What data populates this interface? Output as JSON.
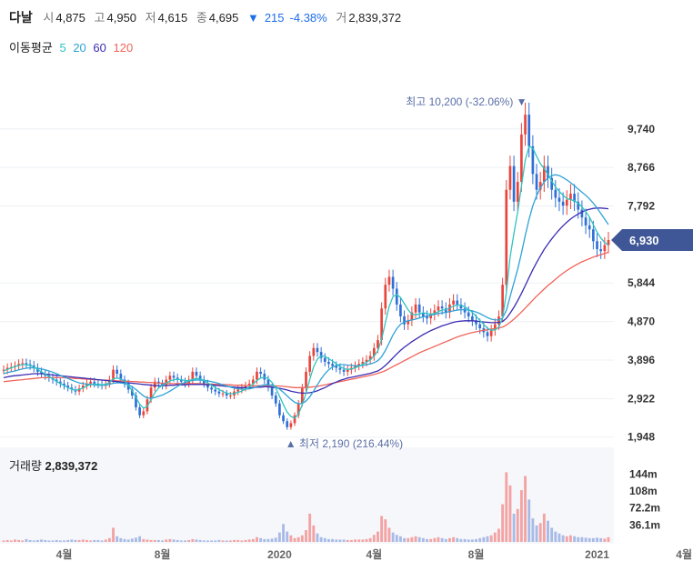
{
  "header": {
    "stock_name": "다날",
    "open_label": "시",
    "open": "4,875",
    "high_label": "고",
    "high": "4,950",
    "low_label": "저",
    "low": "4,615",
    "close_label": "종",
    "close": "4,695",
    "change_arrow": "▼",
    "change": "215",
    "change_pct": "-4.38%",
    "volume_label": "거",
    "volume": "2,839,372"
  },
  "moving_average": {
    "label": "이동평균",
    "periods": [
      {
        "label": "5",
        "color": "#2ec4c0"
      },
      {
        "label": "20",
        "color": "#2ea2d6"
      },
      {
        "label": "60",
        "color": "#3b2db3"
      },
      {
        "label": "120",
        "color": "#f0645a"
      }
    ]
  },
  "chart_data": {
    "type": "candlestick",
    "y_ticks": [
      "9,740",
      "8,766",
      "7,792",
      "6,930",
      "5,844",
      "4,870",
      "3,896",
      "2,922",
      "1,948"
    ],
    "y_tick_values": [
      9740,
      8766,
      7792,
      6930,
      5844,
      4870,
      3896,
      2922,
      1948
    ],
    "ylim": [
      1850,
      10700
    ],
    "current_price": "6,930",
    "current_value": 6930,
    "max_annotation": {
      "prefix": "최고",
      "value": "10,200",
      "pct": "(-32.06%)",
      "arrow": "▼",
      "price": 10200
    },
    "min_annotation": {
      "prefix": "최저",
      "value": "2,190",
      "pct": "(216.44%)",
      "arrow": "▲",
      "price": 2190
    },
    "x_labels": [
      "4월",
      "8월",
      "2020",
      "4월",
      "8월",
      "2021",
      "4월"
    ],
    "x_label_index": [
      16,
      42,
      73,
      98,
      125,
      157,
      180
    ],
    "price_series": [
      3650,
      3700,
      3720,
      3750,
      3800,
      3820,
      3790,
      3760,
      3700,
      3600,
      3550,
      3500,
      3450,
      3400,
      3350,
      3300,
      3250,
      3200,
      3150,
      3100,
      3180,
      3250,
      3300,
      3350,
      3300,
      3280,
      3250,
      3300,
      3400,
      3650,
      3550,
      3400,
      3300,
      3150,
      3000,
      2700,
      2500,
      2600,
      2900,
      3200,
      3350,
      3300,
      3250,
      3400,
      3500,
      3450,
      3400,
      3350,
      3300,
      3400,
      3600,
      3500,
      3400,
      3300,
      3200,
      3150,
      3100,
      3050,
      3050,
      3000,
      3000,
      3100,
      3150,
      3200,
      3250,
      3300,
      3400,
      3600,
      3550,
      3400,
      3200,
      3000,
      2800,
      2500,
      2350,
      2200,
      2300,
      2500,
      2800,
      3200,
      3600,
      4000,
      4200,
      4100,
      3950,
      3850,
      3800,
      3750,
      3700,
      3650,
      3600,
      3650,
      3700,
      3750,
      3800,
      3850,
      3900,
      4000,
      4200,
      4400,
      5200,
      5800,
      6000,
      5700,
      5300,
      5000,
      4800,
      4900,
      5100,
      5300,
      5100,
      5000,
      4950,
      5050,
      5150,
      5250,
      5200,
      5100,
      5300,
      5400,
      5300,
      5200,
      5100,
      5000,
      4900,
      4800,
      4700,
      4600,
      4500,
      4650,
      4800,
      5000,
      5800,
      8200,
      8800,
      7900,
      8400,
      9600,
      10100,
      9300,
      8600,
      8200,
      8400,
      8800,
      8500,
      8200,
      8000,
      7900,
      7800,
      7950,
      8100,
      7900,
      7700,
      7500,
      7300,
      7200,
      6900,
      6700,
      6650,
      6800,
      6930
    ],
    "ma5_series": [
      3620,
      3660,
      3700,
      3730,
      3760,
      3780,
      3780,
      3760,
      3720,
      3660,
      3600,
      3540,
      3480,
      3420,
      3360,
      3300,
      3250,
      3200,
      3160,
      3130,
      3150,
      3190,
      3240,
      3280,
      3290,
      3280,
      3270,
      3280,
      3330,
      3420,
      3440,
      3420,
      3360,
      3260,
      3120,
      2950,
      2780,
      2680,
      2720,
      2900,
      3070,
      3190,
      3260,
      3310,
      3370,
      3400,
      3410,
      3400,
      3380,
      3370,
      3410,
      3430,
      3420,
      3380,
      3320,
      3260,
      3200,
      3150,
      3100,
      3060,
      3040,
      3050,
      3080,
      3110,
      3160,
      3220,
      3290,
      3380,
      3440,
      3460,
      3430,
      3330,
      3180,
      2980,
      2770,
      2580,
      2470,
      2430,
      2530,
      2760,
      3060,
      3410,
      3720,
      3920,
      4000,
      3990,
      3930,
      3870,
      3800,
      3730,
      3680,
      3660,
      3670,
      3700,
      3740,
      3790,
      3840,
      3900,
      4000,
      4130,
      4420,
      4850,
      5250,
      5500,
      5550,
      5480,
      5320,
      5170,
      5050,
      5040,
      5060,
      5090,
      5070,
      5060,
      5070,
      5120,
      5160,
      5170,
      5210,
      5260,
      5290,
      5280,
      5240,
      5180,
      5100,
      5000,
      4900,
      4800,
      4700,
      4650,
      4660,
      4730,
      4960,
      5600,
      6500,
      7100,
      7650,
      8300,
      8950,
      9300,
      9250,
      9050,
      8860,
      8740,
      8590,
      8420,
      8270,
      8160,
      8060,
      7980,
      7950,
      7920,
      7860,
      7770,
      7650,
      7510,
      7320,
      7130,
      6980,
      6870,
      6800
    ],
    "ma20_series": [
      3550,
      3580,
      3600,
      3620,
      3650,
      3670,
      3690,
      3700,
      3700,
      3690,
      3670,
      3650,
      3620,
      3590,
      3550,
      3510,
      3470,
      3430,
      3390,
      3350,
      3320,
      3300,
      3290,
      3280,
      3270,
      3260,
      3260,
      3260,
      3280,
      3310,
      3320,
      3320,
      3300,
      3270,
      3220,
      3150,
      3070,
      2990,
      2940,
      2930,
      2950,
      2980,
      3010,
      3060,
      3110,
      3170,
      3230,
      3290,
      3330,
      3360,
      3380,
      3390,
      3390,
      3380,
      3370,
      3350,
      3330,
      3300,
      3270,
      3240,
      3210,
      3190,
      3170,
      3160,
      3160,
      3170,
      3190,
      3220,
      3250,
      3270,
      3270,
      3260,
      3220,
      3160,
      3080,
      2990,
      2900,
      2830,
      2790,
      2800,
      2860,
      2970,
      3110,
      3270,
      3420,
      3550,
      3650,
      3720,
      3760,
      3780,
      3780,
      3770,
      3760,
      3750,
      3750,
      3760,
      3780,
      3800,
      3830,
      3880,
      3980,
      4140,
      4330,
      4530,
      4690,
      4800,
      4860,
      4890,
      4910,
      4930,
      4960,
      4990,
      5010,
      5030,
      5050,
      5070,
      5090,
      5100,
      5120,
      5140,
      5160,
      5170,
      5170,
      5160,
      5140,
      5110,
      5070,
      5020,
      4970,
      4930,
      4910,
      4910,
      4960,
      5150,
      5500,
      5850,
      6200,
      6600,
      7050,
      7450,
      7800,
      8050,
      8250,
      8400,
      8500,
      8560,
      8580,
      8560,
      8510,
      8450,
      8380,
      8300,
      8220,
      8140,
      8060,
      7970,
      7860,
      7740,
      7600,
      7460,
      7320
    ],
    "ma60_series": [
      3450,
      3470,
      3490,
      3500,
      3510,
      3520,
      3530,
      3540,
      3550,
      3550,
      3550,
      3540,
      3530,
      3520,
      3510,
      3500,
      3490,
      3480,
      3470,
      3460,
      3450,
      3440,
      3430,
      3420,
      3410,
      3400,
      3390,
      3380,
      3370,
      3360,
      3350,
      3340,
      3330,
      3320,
      3310,
      3300,
      3290,
      3280,
      3270,
      3260,
      3250,
      3250,
      3250,
      3250,
      3260,
      3260,
      3270,
      3270,
      3270,
      3280,
      3280,
      3280,
      3280,
      3280,
      3270,
      3270,
      3260,
      3250,
      3240,
      3230,
      3220,
      3210,
      3200,
      3200,
      3200,
      3200,
      3200,
      3210,
      3210,
      3220,
      3220,
      3210,
      3200,
      3180,
      3160,
      3140,
      3110,
      3090,
      3070,
      3060,
      3060,
      3070,
      3090,
      3120,
      3160,
      3200,
      3250,
      3300,
      3340,
      3380,
      3410,
      3440,
      3460,
      3480,
      3500,
      3520,
      3540,
      3560,
      3590,
      3620,
      3680,
      3760,
      3850,
      3950,
      4050,
      4140,
      4220,
      4290,
      4360,
      4420,
      4480,
      4540,
      4590,
      4640,
      4680,
      4720,
      4760,
      4790,
      4820,
      4850,
      4870,
      4880,
      4890,
      4890,
      4890,
      4880,
      4870,
      4860,
      4850,
      4840,
      4840,
      4850,
      4870,
      4950,
      5080,
      5230,
      5400,
      5580,
      5780,
      5980,
      6180,
      6360,
      6530,
      6690,
      6830,
      6960,
      7080,
      7190,
      7290,
      7380,
      7460,
      7530,
      7590,
      7640,
      7680,
      7710,
      7730,
      7740,
      7740,
      7730,
      7720
    ],
    "ma120_series": [
      3350,
      3360,
      3370,
      3380,
      3390,
      3400,
      3410,
      3420,
      3430,
      3440,
      3450,
      3450,
      3450,
      3450,
      3450,
      3450,
      3450,
      3440,
      3440,
      3430,
      3430,
      3420,
      3410,
      3410,
      3400,
      3400,
      3390,
      3390,
      3380,
      3380,
      3370,
      3370,
      3360,
      3360,
      3350,
      3350,
      3340,
      3340,
      3330,
      3330,
      3320,
      3320,
      3310,
      3310,
      3300,
      3300,
      3300,
      3300,
      3300,
      3300,
      3300,
      3300,
      3300,
      3290,
      3290,
      3290,
      3280,
      3280,
      3280,
      3270,
      3270,
      3260,
      3260,
      3260,
      3250,
      3250,
      3250,
      3250,
      3250,
      3250,
      3250,
      3250,
      3240,
      3240,
      3230,
      3220,
      3210,
      3200,
      3200,
      3200,
      3200,
      3210,
      3220,
      3230,
      3250,
      3270,
      3290,
      3310,
      3330,
      3350,
      3370,
      3390,
      3410,
      3430,
      3450,
      3470,
      3490,
      3510,
      3530,
      3560,
      3590,
      3630,
      3680,
      3730,
      3780,
      3830,
      3880,
      3930,
      3980,
      4030,
      4080,
      4120,
      4160,
      4200,
      4240,
      4280,
      4320,
      4360,
      4400,
      4440,
      4480,
      4510,
      4540,
      4570,
      4590,
      4610,
      4630,
      4650,
      4660,
      4680,
      4690,
      4710,
      4730,
      4780,
      4850,
      4930,
      5020,
      5110,
      5210,
      5310,
      5410,
      5510,
      5600,
      5690,
      5780,
      5860,
      5940,
      6020,
      6090,
      6160,
      6220,
      6280,
      6330,
      6380,
      6420,
      6460,
      6500,
      6530,
      6560,
      6590,
      6620
    ],
    "volume_label": "거래량",
    "volume_value": "2,839,372",
    "volume_ticks": [
      "144m",
      "108m",
      "72.2m",
      "36.1m"
    ],
    "volume_tick_values": [
      144,
      108,
      72.2,
      36.1
    ],
    "volume_max": 170,
    "volume_series": [
      3,
      4,
      3,
      5,
      4,
      3,
      6,
      4,
      3,
      4,
      5,
      4,
      3,
      3,
      4,
      3,
      3,
      4,
      5,
      4,
      4,
      5,
      4,
      3,
      4,
      4,
      3,
      5,
      8,
      30,
      12,
      8,
      6,
      5,
      7,
      9,
      12,
      6,
      5,
      4,
      4,
      4,
      3,
      5,
      6,
      5,
      4,
      3,
      3,
      4,
      6,
      5,
      4,
      3,
      3,
      3,
      3,
      4,
      3,
      3,
      3,
      4,
      4,
      3,
      4,
      5,
      6,
      10,
      8,
      6,
      6,
      7,
      9,
      20,
      38,
      22,
      14,
      8,
      10,
      14,
      25,
      60,
      35,
      18,
      10,
      8,
      6,
      6,
      5,
      5,
      5,
      4,
      4,
      5,
      5,
      5,
      6,
      8,
      15,
      22,
      55,
      48,
      30,
      20,
      15,
      12,
      8,
      8,
      10,
      12,
      10,
      8,
      6,
      6,
      8,
      10,
      8,
      6,
      8,
      10,
      8,
      6,
      6,
      5,
      5,
      6,
      8,
      10,
      12,
      14,
      20,
      28,
      80,
      148,
      120,
      60,
      70,
      110,
      140,
      90,
      50,
      35,
      40,
      60,
      45,
      30,
      22,
      18,
      14,
      12,
      14,
      12,
      10,
      10,
      9,
      8,
      8,
      9,
      8,
      7,
      10
    ]
  }
}
